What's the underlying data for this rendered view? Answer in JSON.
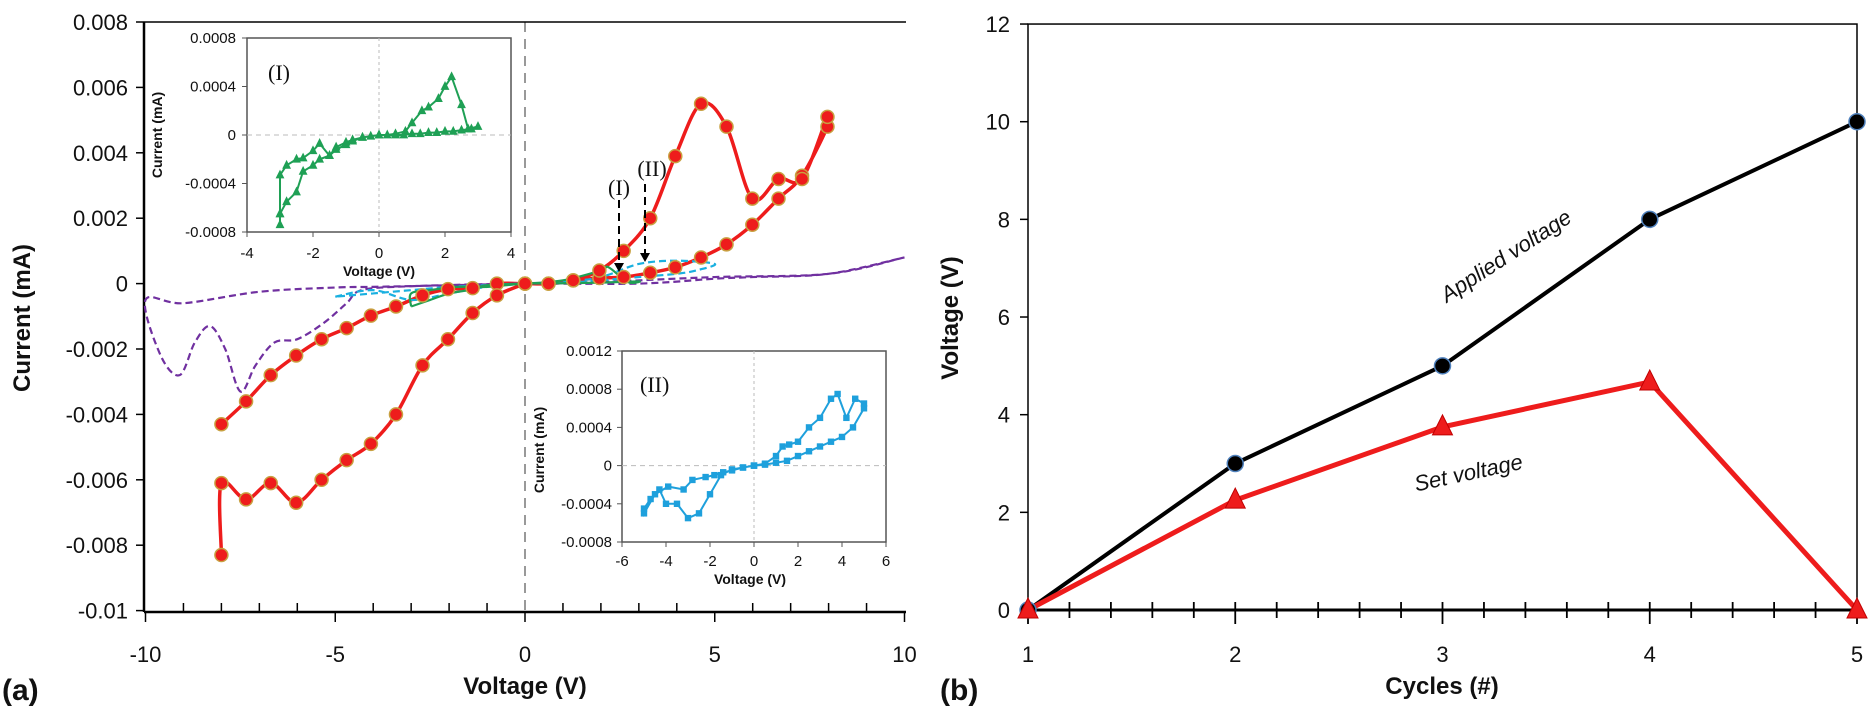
{
  "chart_data": [
    {
      "panel_label": "(a)",
      "type": "line",
      "xlabel": "Voltage (V)",
      "ylabel": "Current (mA)",
      "xlim": [
        -10,
        10
      ],
      "ylim": [
        -0.01,
        0.008
      ],
      "x_ticks": [
        "-10",
        "-5",
        "0",
        "5",
        "10"
      ],
      "y_ticks": [
        "0.008",
        "0.006",
        "0.004",
        "0.002",
        "0",
        "-0.002",
        "-0.004",
        "-0.006",
        "-0.008",
        "-0.01"
      ],
      "annotations": [
        "(I)",
        "(II)"
      ],
      "series": [
        {
          "color": "#ee1c1c",
          "marker": "circle",
          "style": "solid",
          "x": [
            -8,
            -7.35,
            -6.7,
            -6.03,
            -5.36,
            -4.7,
            -4.06,
            -3.4,
            -2.7,
            -2.03,
            -1.38,
            -0.74,
            0,
            0.62,
            1.27,
            1.96,
            2.6,
            3.3,
            3.96,
            4.64,
            5.31,
            5.99,
            6.68,
            7.3,
            7.97,
            7.97,
            7.3,
            6.68,
            5.99,
            5.31,
            4.64,
            3.96,
            3.3,
            2.6,
            1.96,
            1.27,
            0.62,
            0
          ],
          "y": [
            -0.0043,
            -0.0036,
            -0.0028,
            -0.0022,
            -0.0017,
            -0.00136,
            -0.00098,
            -0.0007,
            -0.00036,
            -0.00017,
            -0.00014,
            0,
            0,
            0,
            0.0001,
            0.00017,
            0.0002,
            0.00033,
            0.0005,
            0.0008,
            0.0012,
            0.0018,
            0.0026,
            0.0033,
            0.0048,
            0.0051,
            0.0032,
            0.0032,
            0.0026,
            0.0048,
            0.0055,
            0.0039,
            0.002,
            0.001,
            0.0004,
            0.0001,
            0,
            0
          ]
        },
        {
          "color": "#ee1c1c",
          "marker": "circle",
          "style": "solid",
          "x": [
            0,
            -0.74,
            -1.38,
            -2.03,
            -2.7,
            -3.4,
            -4.06,
            -4.7,
            -5.36,
            -6.03,
            -6.7,
            -7.35,
            -8,
            -8
          ],
          "y": [
            0,
            -0.00036,
            -0.0009,
            -0.0017,
            -0.0025,
            -0.004,
            -0.0049,
            -0.0054,
            -0.006,
            -0.0067,
            -0.0061,
            -0.0066,
            -0.0061,
            -0.0083
          ]
        },
        {
          "color": "#7030a0",
          "marker": "none",
          "style": "dashed",
          "x": [
            10,
            8,
            5,
            2,
            0,
            -2,
            -4,
            -5,
            -7,
            -9,
            -10,
            -9.6,
            -9.1,
            -8.7,
            -8.3,
            -7.9,
            -7.5,
            -7.1,
            -6.6,
            -6,
            -5.3,
            -4.7,
            -4.3,
            -3,
            0,
            3,
            5,
            6,
            8,
            10
          ],
          "y": [
            0.0008,
            0.0003,
            0.0002,
            5e-05,
            0,
            -5e-05,
            -0.0001,
            -0.00012,
            -0.00025,
            -0.0006,
            -0.0005,
            -0.0022,
            -0.0028,
            -0.0018,
            -0.0013,
            -0.002,
            -0.0033,
            -0.0025,
            -0.0018,
            -0.0017,
            -0.0012,
            -0.0006,
            -0.0002,
            -8e-05,
            0,
            0,
            0.00015,
            0.0002,
            0.0003,
            0.0008
          ]
        },
        {
          "color": "#1ab0e0",
          "marker": "none",
          "style": "dashed",
          "x": [
            -5,
            -4,
            -3,
            -2,
            -1,
            0,
            1,
            2,
            3,
            4,
            5,
            4.5,
            4,
            3,
            2,
            1,
            0,
            -1,
            -2,
            -3,
            -4,
            -5
          ],
          "y": [
            -0.0004,
            -0.0002,
            -0.0005,
            -0.0003,
            -0.0001,
            0,
            5e-05,
            0.0002,
            0.0006,
            0.0007,
            0.0006,
            0.0004,
            0.0003,
            0.0002,
            0.0001,
            2e-05,
            0,
            -5e-05,
            -0.0001,
            -0.0002,
            -0.0003,
            -0.0004
          ]
        },
        {
          "color": "#1fa055",
          "marker": "none",
          "style": "solid",
          "x": [
            -3,
            -2.5,
            -2,
            -1.5,
            -1,
            0,
            1,
            2,
            2.2,
            2.7,
            3,
            2,
            1,
            0,
            -1,
            -1.8,
            -2.5,
            -3,
            -3
          ],
          "y": [
            -0.0007,
            -0.0005,
            -0.0003,
            -0.0002,
            -5e-05,
            0,
            0.0001,
            0.0004,
            0.0005,
            5e-05,
            7e-05,
            3e-05,
            1e-05,
            0,
            -0.0001,
            -0.0001,
            -0.0002,
            -0.0003,
            -0.0007
          ]
        }
      ],
      "insets": [
        {
          "label": "(I)",
          "type": "line",
          "xlabel": "Voltage (V)",
          "ylabel": "Current (mA)",
          "xlim": [
            -4,
            4
          ],
          "ylim": [
            -0.0008,
            0.0008
          ],
          "x_ticks": [
            "-4",
            "-2",
            "0",
            "2",
            "4"
          ],
          "y_ticks": [
            "0.0008",
            "0.0004",
            "0",
            "-0.0004",
            "-0.0008"
          ],
          "color": "#1fa055",
          "marker": "triangle",
          "x": [
            -3,
            -3,
            -2.8,
            -2.5,
            -2.3,
            -2,
            -1.8,
            -1.5,
            -1.3,
            -1,
            -0.8,
            -0.5,
            -0.25,
            0,
            0.25,
            0.5,
            0.8,
            1,
            1.3,
            1.5,
            1.8,
            2,
            2.2,
            2.5,
            2.7,
            3,
            2.8,
            2.5,
            2.25,
            2,
            1.75,
            1.5,
            1.25,
            1,
            0.75,
            0.5,
            0,
            -0.5,
            -0.8,
            -1,
            -1.3,
            -1.5,
            -1.8,
            -2,
            -2.3,
            -2.5,
            -2.8,
            -3,
            -3
          ],
          "y": [
            -0.00074,
            -0.00065,
            -0.00055,
            -0.00047,
            -0.0003,
            -0.00025,
            -0.0002,
            -0.00017,
            -0.0001,
            -6e-05,
            -4e-05,
            -2e-05,
            -1e-05,
            0,
            0,
            1e-05,
            3e-05,
            0.0001,
            0.0002,
            0.00023,
            0.0003,
            0.0004,
            0.00048,
            0.00025,
            5e-05,
            7e-05,
            5e-05,
            4e-05,
            3e-05,
            3e-05,
            2e-05,
            2e-05,
            1e-05,
            1e-05,
            0,
            0,
            0,
            -2e-05,
            -5e-05,
            -8e-05,
            -0.00012,
            -0.00017,
            -7e-05,
            -0.00013,
            -0.00019,
            -0.0002,
            -0.00025,
            -0.00033,
            -0.00065
          ]
        },
        {
          "label": "(II)",
          "type": "line",
          "xlabel": "Voltage (V)",
          "ylabel": "Current (mA)",
          "xlim": [
            -6,
            6
          ],
          "ylim": [
            -0.0008,
            0.0012
          ],
          "x_ticks": [
            "-6",
            "-4",
            "-2",
            "0",
            "2",
            "4",
            "6"
          ],
          "y_ticks": [
            "0.0012",
            "0.0008",
            "0.0004",
            "0",
            "-0.0004",
            "-0.0008"
          ],
          "color": "#1ea0dc",
          "marker": "square",
          "x": [
            0,
            0.5,
            1,
            1.3,
            1.6,
            2,
            2.5,
            3,
            3.5,
            3.8,
            4.2,
            4.6,
            5,
            5,
            4.5,
            4,
            3.5,
            3,
            2.5,
            2,
            1.5,
            1,
            0.5,
            0,
            -0.5,
            -1,
            -1.5,
            -2,
            -2.5,
            -3,
            -3.5,
            -4,
            -4.3,
            -4.7,
            -5,
            -5,
            -4.5,
            -3.9,
            -3.2,
            -2.8,
            -2.2,
            -1.8,
            -1.4,
            -1,
            -0.5,
            0
          ],
          "y": [
            0,
            2e-05,
            0.0001,
            0.0002,
            0.00022,
            0.00025,
            0.0004,
            0.0005,
            0.0007,
            0.00075,
            0.0005,
            0.0007,
            0.00065,
            0.0006,
            0.0004,
            0.0003,
            0.00025,
            0.0002,
            0.00015,
            0.0001,
            5e-05,
            3e-05,
            1e-05,
            0,
            -2e-05,
            -4e-05,
            -0.0001,
            -0.0003,
            -0.0005,
            -0.00055,
            -0.0004,
            -0.0004,
            -0.00025,
            -0.00035,
            -0.00045,
            -0.0005,
            -0.0003,
            -0.00022,
            -0.00025,
            -0.00015,
            -0.00012,
            -0.0001,
            -7e-05,
            -5e-05,
            -2e-05,
            0
          ]
        }
      ]
    },
    {
      "panel_label": "(b)",
      "type": "line",
      "xlabel": "Cycles (#)",
      "ylabel": "Voltage (V)",
      "xlim": [
        1,
        5
      ],
      "ylim": [
        0,
        12
      ],
      "x_ticks": [
        "1",
        "2",
        "3",
        "4",
        "5"
      ],
      "y_ticks": [
        "0",
        "2",
        "4",
        "6",
        "8",
        "10",
        "12"
      ],
      "categories": [
        1,
        2,
        3,
        4,
        5
      ],
      "series": [
        {
          "label_on_chart": "Applied voltage",
          "color": "#000000",
          "marker": "circle",
          "values": [
            0,
            3,
            5,
            8,
            10
          ]
        },
        {
          "label_on_chart": "Set voltage",
          "color": "#ee1c1c",
          "marker": "triangle",
          "values": [
            0,
            2.25,
            3.75,
            4.67,
            0
          ]
        }
      ]
    }
  ]
}
